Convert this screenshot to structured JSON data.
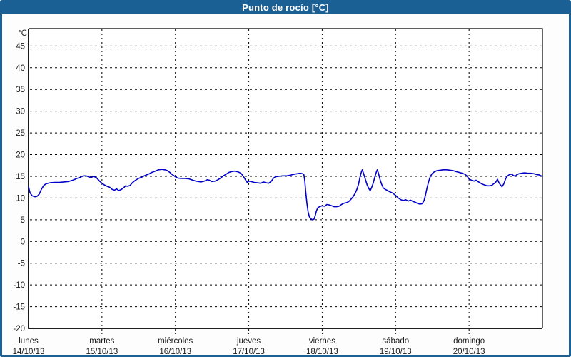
{
  "window": {
    "title": "Punto de rocío [°C]"
  },
  "colors": {
    "frame_blue": "#1b6094",
    "title_text": "#ffffff",
    "panel_bg": "#fdfdfd",
    "plot_bg": "#ffffff",
    "grid_line": "#000000",
    "axis_line": "#000000",
    "tick_text": "#1a1a1a",
    "series_line": "#0000c8"
  },
  "chart_data": {
    "type": "line",
    "title": "Punto de rocío [°C]",
    "ylabel": "°C",
    "ylim": [
      -20,
      49
    ],
    "yticks": [
      -20,
      -15,
      -10,
      -5,
      0,
      5,
      10,
      15,
      20,
      25,
      30,
      35,
      40,
      45
    ],
    "grid": true,
    "x_total_hours": 168,
    "days": [
      {
        "name": "lunes",
        "date": "14/10/13"
      },
      {
        "name": "martes",
        "date": "15/10/13"
      },
      {
        "name": "miércoles",
        "date": "16/10/13"
      },
      {
        "name": "jueves",
        "date": "17/10/13"
      },
      {
        "name": "viernes",
        "date": "18/10/13"
      },
      {
        "name": "sábado",
        "date": "19/10/13"
      },
      {
        "name": "domingo",
        "date": "20/10/13"
      }
    ],
    "series": [
      {
        "name": "Punto de rocío",
        "points": [
          [
            0,
            12.6
          ],
          [
            0.5,
            11.2
          ],
          [
            1.2,
            10.5
          ],
          [
            2,
            10.3
          ],
          [
            2.8,
            10.4
          ],
          [
            3.5,
            10.9
          ],
          [
            4.2,
            12
          ],
          [
            5,
            12.9
          ],
          [
            5.8,
            13.3
          ],
          [
            7,
            13.5
          ],
          [
            8.5,
            13.6
          ],
          [
            10,
            13.6
          ],
          [
            11.5,
            13.7
          ],
          [
            13,
            13.8
          ],
          [
            14.5,
            14.1
          ],
          [
            15.8,
            14.5
          ],
          [
            17,
            14.8
          ],
          [
            17.9,
            15.1
          ],
          [
            18.9,
            15.1
          ],
          [
            19.6,
            14.9
          ],
          [
            20.4,
            14.7
          ],
          [
            21.2,
            15
          ],
          [
            22.2,
            14.7
          ],
          [
            23.2,
            13.9
          ],
          [
            24,
            13.4
          ],
          [
            24.8,
            13
          ],
          [
            25.7,
            12.7
          ],
          [
            26.5,
            12.5
          ],
          [
            27.3,
            12
          ],
          [
            28.1,
            11.8
          ],
          [
            28.8,
            12.1
          ],
          [
            29.5,
            11.7
          ],
          [
            30.2,
            11.9
          ],
          [
            31,
            12.3
          ],
          [
            31.7,
            12.8
          ],
          [
            32.4,
            12.7
          ],
          [
            33.2,
            12.9
          ],
          [
            33.9,
            13.5
          ],
          [
            34.8,
            14
          ],
          [
            35.9,
            14.5
          ],
          [
            37,
            14.8
          ],
          [
            38.1,
            15.2
          ],
          [
            39.2,
            15.5
          ],
          [
            40.3,
            15.9
          ],
          [
            41.4,
            16.2
          ],
          [
            42.5,
            16.5
          ],
          [
            43.6,
            16.6
          ],
          [
            44.6,
            16.5
          ],
          [
            45.4,
            16.3
          ],
          [
            46.2,
            15.9
          ],
          [
            47,
            15.4
          ],
          [
            47.6,
            15.1
          ],
          [
            48,
            14.9
          ],
          [
            48.8,
            14.6
          ],
          [
            49.9,
            14.5
          ],
          [
            51.2,
            14.5
          ],
          [
            52.5,
            14.4
          ],
          [
            53.7,
            14.1
          ],
          [
            54.7,
            13.9
          ],
          [
            55.6,
            13.8
          ],
          [
            56.4,
            13.7
          ],
          [
            57.5,
            13.9
          ],
          [
            58.4,
            14.2
          ],
          [
            59.1,
            14.1
          ],
          [
            59.9,
            13.8
          ],
          [
            61,
            13.9
          ],
          [
            61.9,
            14.2
          ],
          [
            62.8,
            14.6
          ],
          [
            63.7,
            15.1
          ],
          [
            64.6,
            15.5
          ],
          [
            65.5,
            15.9
          ],
          [
            66.4,
            16.1
          ],
          [
            67.3,
            16.2
          ],
          [
            68.1,
            16.1
          ],
          [
            68.9,
            15.9
          ],
          [
            69.6,
            15.6
          ],
          [
            70.3,
            14.9
          ],
          [
            71,
            14.1
          ],
          [
            71.5,
            13.6
          ],
          [
            72,
            13.9
          ],
          [
            72.8,
            13.8
          ],
          [
            73.7,
            13.6
          ],
          [
            74.8,
            13.5
          ],
          [
            75.9,
            13.4
          ],
          [
            76.8,
            13.7
          ],
          [
            77.7,
            13.5
          ],
          [
            78.5,
            13.4
          ],
          [
            79.4,
            13.9
          ],
          [
            80.1,
            14.6
          ],
          [
            80.7,
            14.9
          ],
          [
            81.7,
            15
          ],
          [
            83,
            15.1
          ],
          [
            84.5,
            15.1
          ],
          [
            85.8,
            15.3
          ],
          [
            86.9,
            15.5
          ],
          [
            87.8,
            15.6
          ],
          [
            88.8,
            15.7
          ],
          [
            89.6,
            15.6
          ],
          [
            90,
            15.4
          ],
          [
            90.3,
            14
          ],
          [
            90.6,
            11.5
          ],
          [
            91,
            8.8
          ],
          [
            91.4,
            6.8
          ],
          [
            91.8,
            5.7
          ],
          [
            92.3,
            5.2
          ],
          [
            92.8,
            5
          ],
          [
            93.3,
            5.1
          ],
          [
            93.7,
            5.9
          ],
          [
            94.1,
            7
          ],
          [
            94.5,
            7.7
          ],
          [
            95.1,
            8
          ],
          [
            96,
            8.2
          ],
          [
            96.8,
            8.1
          ],
          [
            97.5,
            8.5
          ],
          [
            98.3,
            8.4
          ],
          [
            99.1,
            8.2
          ],
          [
            99.9,
            8
          ],
          [
            100.7,
            8
          ],
          [
            101.5,
            8.1
          ],
          [
            102.3,
            8.5
          ],
          [
            103.1,
            8.8
          ],
          [
            103.9,
            8.9
          ],
          [
            104.7,
            9.2
          ],
          [
            105.4,
            9.7
          ],
          [
            106.1,
            10.3
          ],
          [
            106.8,
            11.1
          ],
          [
            107.4,
            12.1
          ],
          [
            107.9,
            13.2
          ],
          [
            108.4,
            15
          ],
          [
            108.9,
            16.2
          ],
          [
            109.1,
            16.5
          ],
          [
            109.5,
            15.7
          ],
          [
            110.1,
            14.3
          ],
          [
            110.7,
            13
          ],
          [
            111.3,
            12.1
          ],
          [
            111.7,
            11.7
          ],
          [
            112.2,
            12.5
          ],
          [
            112.7,
            13.5
          ],
          [
            113.3,
            15.1
          ],
          [
            113.8,
            16.2
          ],
          [
            114,
            16.5
          ],
          [
            114.4,
            15.7
          ],
          [
            114.9,
            14.3
          ],
          [
            115.4,
            13.2
          ],
          [
            116,
            12.3
          ],
          [
            116.6,
            12
          ],
          [
            117.4,
            11.7
          ],
          [
            118.2,
            11.4
          ],
          [
            119.1,
            11.1
          ],
          [
            120,
            10.6
          ],
          [
            120.9,
            10
          ],
          [
            121.7,
            9.6
          ],
          [
            122.5,
            9.4
          ],
          [
            123.3,
            9.6
          ],
          [
            124.1,
            9.3
          ],
          [
            124.9,
            9.5
          ],
          [
            125.7,
            9.2
          ],
          [
            126.5,
            9
          ],
          [
            127.3,
            8.7
          ],
          [
            128.1,
            8.6
          ],
          [
            128.7,
            8.7
          ],
          [
            129.3,
            9.4
          ],
          [
            129.8,
            10.8
          ],
          [
            130.3,
            12.4
          ],
          [
            130.8,
            13.8
          ],
          [
            131.3,
            14.9
          ],
          [
            131.9,
            15.6
          ],
          [
            132.6,
            16
          ],
          [
            133.5,
            16.3
          ],
          [
            134.5,
            16.4
          ],
          [
            135.6,
            16.5
          ],
          [
            136.7,
            16.5
          ],
          [
            137.8,
            16.4
          ],
          [
            138.8,
            16.3
          ],
          [
            139.8,
            16.1
          ],
          [
            140.8,
            15.9
          ],
          [
            141.8,
            15.7
          ],
          [
            142.6,
            15.5
          ],
          [
            143.3,
            15.1
          ],
          [
            143.8,
            14.6
          ],
          [
            144,
            14.4
          ],
          [
            144.5,
            14.2
          ],
          [
            145.1,
            14
          ],
          [
            145.7,
            13.9
          ],
          [
            146.3,
            14.1
          ],
          [
            146.9,
            13.8
          ],
          [
            147.6,
            13.5
          ],
          [
            148.3,
            13.2
          ],
          [
            149.1,
            13
          ],
          [
            149.9,
            12.8
          ],
          [
            150.7,
            12.8
          ],
          [
            151.4,
            12.9
          ],
          [
            152.1,
            13.3
          ],
          [
            152.7,
            13.6
          ],
          [
            153.3,
            14.3
          ],
          [
            153.8,
            13.5
          ],
          [
            154.3,
            13
          ],
          [
            154.8,
            12.6
          ],
          [
            155.4,
            13.3
          ],
          [
            156,
            14.5
          ],
          [
            156.6,
            15.1
          ],
          [
            157.2,
            15.4
          ],
          [
            157.9,
            15.5
          ],
          [
            158.5,
            15.2
          ],
          [
            159.1,
            15
          ],
          [
            159.7,
            15.4
          ],
          [
            160.3,
            15.6
          ],
          [
            161.2,
            15.7
          ],
          [
            162.2,
            15.8
          ],
          [
            163.2,
            15.7
          ],
          [
            164.2,
            15.7
          ],
          [
            165.2,
            15.6
          ],
          [
            166.2,
            15.4
          ],
          [
            167,
            15.3
          ],
          [
            167.6,
            15.1
          ],
          [
            168,
            15
          ]
        ]
      }
    ]
  }
}
